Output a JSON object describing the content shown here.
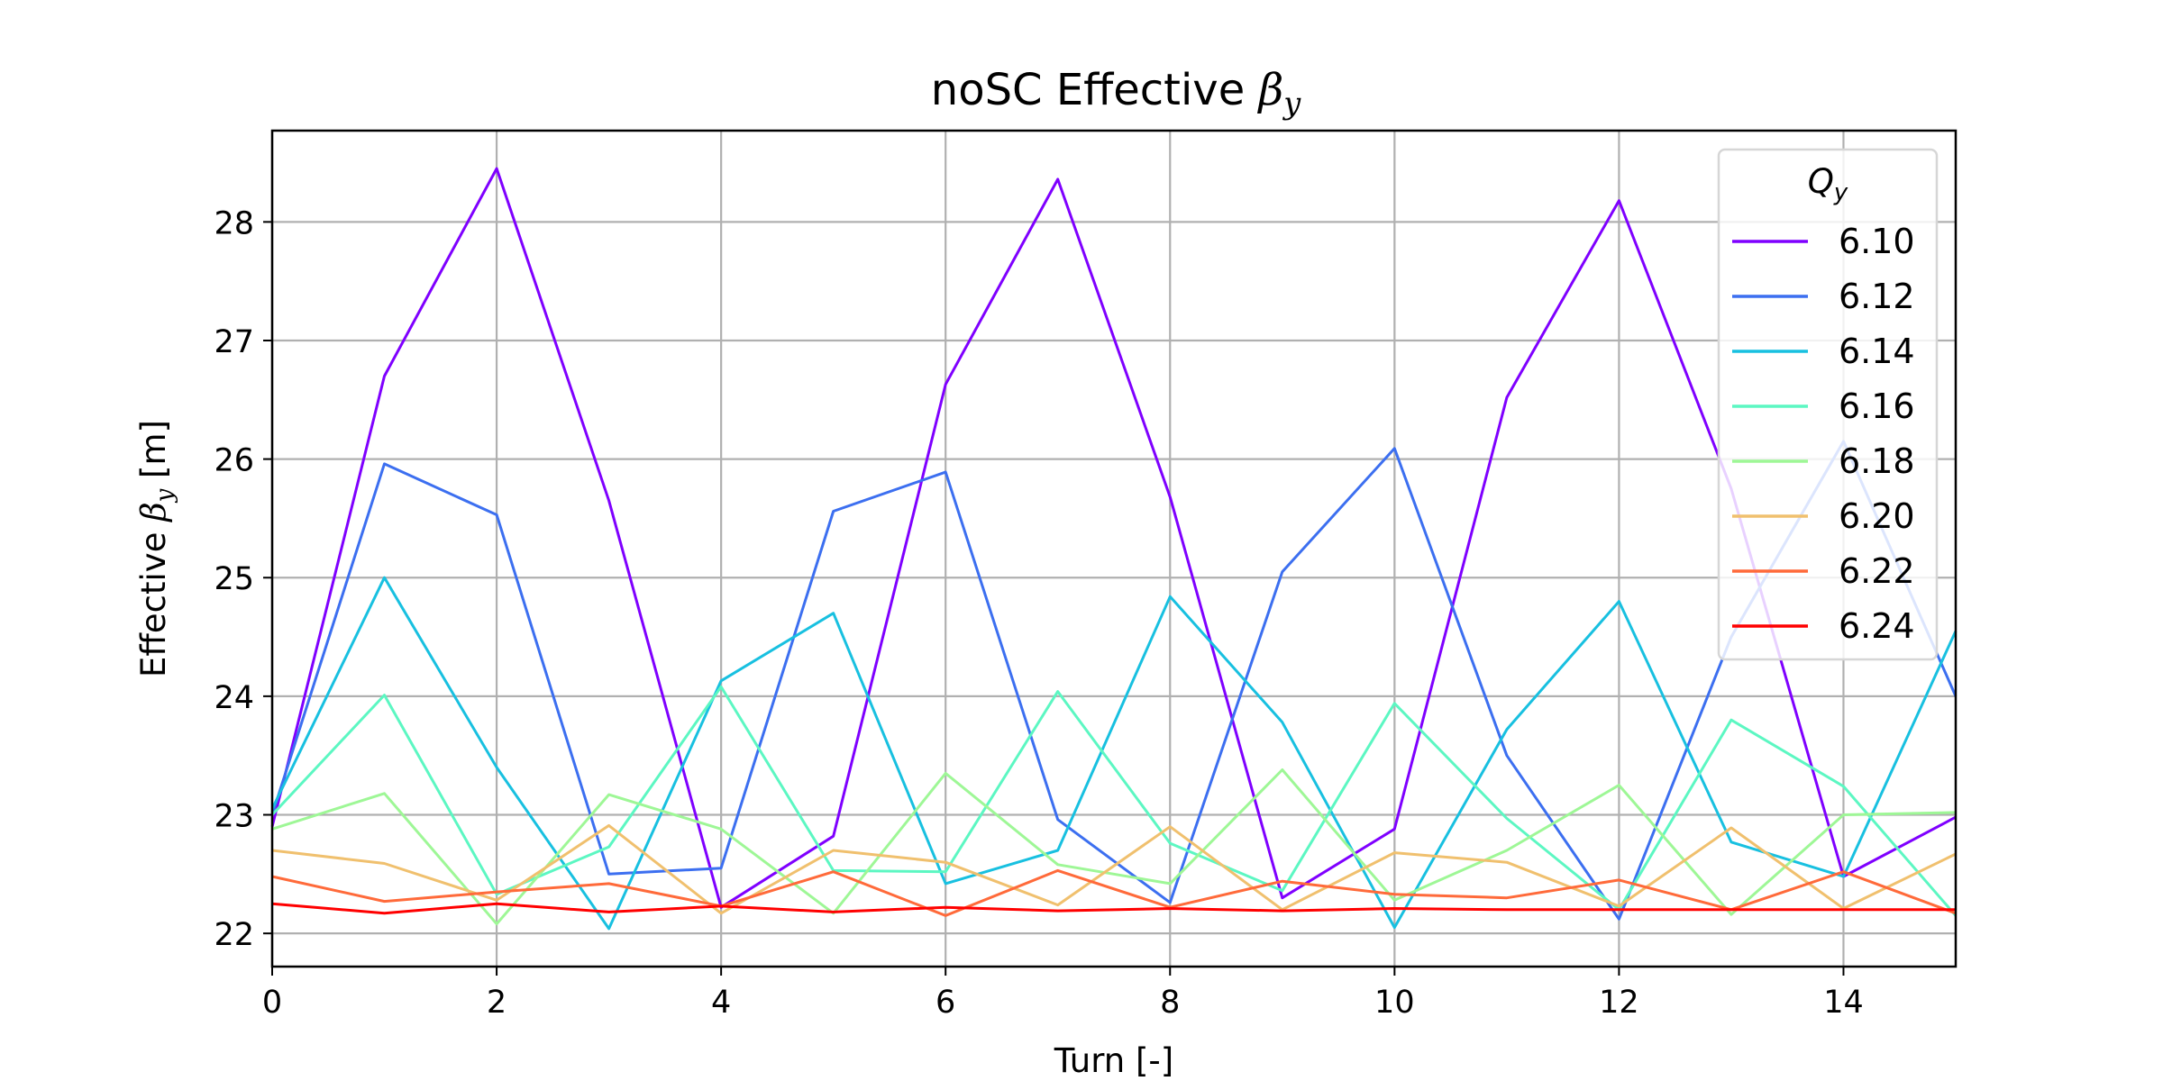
{
  "chart_data": {
    "type": "line",
    "title_prefix": "noSC Effective ",
    "title_symbol": "β",
    "title_subscript": "y",
    "xlabel": "Turn [-]",
    "ylabel_prefix": "Effective ",
    "ylabel_symbol": "β",
    "ylabel_subscript": "y",
    "ylabel_suffix": " [m]",
    "xlim": [
      0,
      15
    ],
    "ylim": [
      21.72,
      28.77
    ],
    "xticks": [
      0,
      2,
      4,
      6,
      8,
      10,
      12,
      14
    ],
    "yticks": [
      22,
      23,
      24,
      25,
      26,
      27,
      28
    ],
    "grid": true,
    "legend": {
      "title_symbol": "Q",
      "title_subscript": "y",
      "placement": "top-right"
    },
    "x": [
      0,
      1,
      2,
      3,
      4,
      5,
      6,
      7,
      8,
      9,
      10,
      11,
      12,
      13,
      14,
      15
    ],
    "series": [
      {
        "name": "6.10",
        "color": "#7f00ff",
        "values": [
          22.9,
          26.7,
          28.45,
          25.65,
          22.22,
          22.82,
          26.63,
          28.36,
          25.68,
          22.3,
          22.88,
          26.52,
          28.18,
          25.75,
          22.48,
          22.98
        ]
      },
      {
        "name": "6.12",
        "color": "#3c6ff0",
        "values": [
          23.0,
          25.96,
          25.53,
          22.5,
          22.55,
          25.56,
          25.89,
          22.96,
          22.26,
          25.05,
          26.09,
          23.5,
          22.12,
          24.5,
          26.15,
          24.0
        ]
      },
      {
        "name": "6.14",
        "color": "#18c0e0",
        "values": [
          23.05,
          25.0,
          23.4,
          22.04,
          24.13,
          24.7,
          22.42,
          22.7,
          24.84,
          23.78,
          22.05,
          23.72,
          24.8,
          22.77,
          22.48,
          24.55
        ]
      },
      {
        "name": "6.16",
        "color": "#5cf7c2",
        "values": [
          23.0,
          24.01,
          22.33,
          22.73,
          24.08,
          22.53,
          22.52,
          24.04,
          22.76,
          22.36,
          23.94,
          22.97,
          22.2,
          23.8,
          23.24,
          22.15
        ]
      },
      {
        "name": "6.18",
        "color": "#9ef796",
        "values": [
          22.88,
          23.18,
          22.08,
          23.17,
          22.88,
          22.17,
          23.35,
          22.58,
          22.42,
          23.38,
          22.28,
          22.7,
          23.25,
          22.16,
          23.0,
          23.02
        ]
      },
      {
        "name": "6.20",
        "color": "#f0c06e",
        "values": [
          22.7,
          22.59,
          22.28,
          22.91,
          22.17,
          22.7,
          22.6,
          22.24,
          22.9,
          22.2,
          22.68,
          22.6,
          22.23,
          22.89,
          22.21,
          22.67
        ]
      },
      {
        "name": "6.22",
        "color": "#ff6a3a",
        "values": [
          22.48,
          22.27,
          22.35,
          22.42,
          22.23,
          22.52,
          22.15,
          22.53,
          22.22,
          22.44,
          22.33,
          22.3,
          22.45,
          22.2,
          22.52,
          22.17
        ]
      },
      {
        "name": "6.24",
        "color": "#ff0000",
        "values": [
          22.25,
          22.17,
          22.25,
          22.18,
          22.23,
          22.18,
          22.22,
          22.19,
          22.21,
          22.19,
          22.21,
          22.2,
          22.2,
          22.2,
          22.2,
          22.2
        ]
      }
    ]
  }
}
